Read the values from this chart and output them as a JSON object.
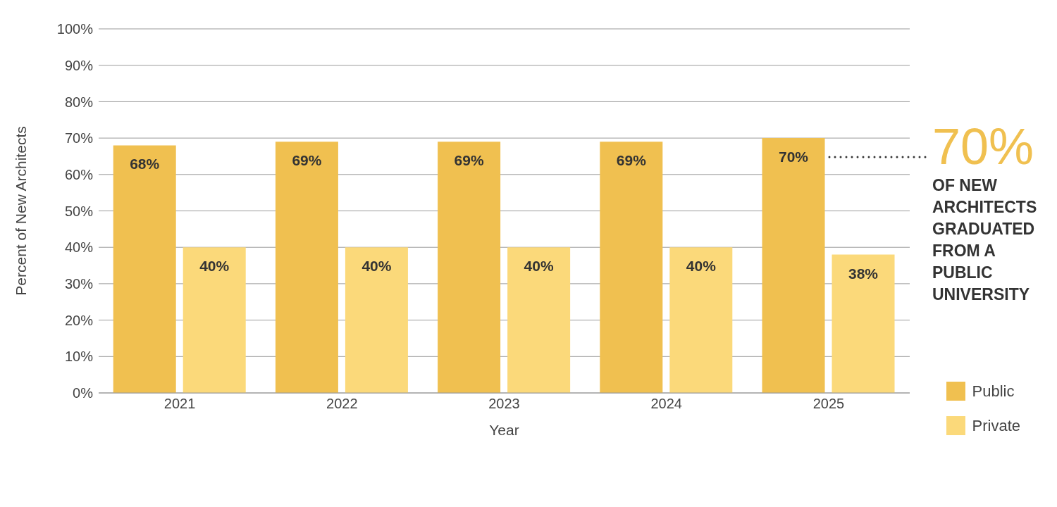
{
  "chart_data": {
    "type": "bar",
    "xlabel": "Year",
    "ylabel": "Percent of New Architects",
    "categories": [
      "2021",
      "2022",
      "2023",
      "2024",
      "2025"
    ],
    "series": [
      {
        "name": "Public",
        "color": "#f0c050",
        "values": [
          68,
          69,
          69,
          69,
          70
        ],
        "value_labels": [
          "68%",
          "69%",
          "69%",
          "69%",
          "70%"
        ]
      },
      {
        "name": "Private",
        "color": "#fbd97a",
        "values": [
          40,
          40,
          40,
          40,
          38
        ],
        "value_labels": [
          "40%",
          "40%",
          "40%",
          "40%",
          "38%"
        ]
      }
    ],
    "ylim": [
      0,
      100
    ],
    "yticks": [
      {
        "value": 0,
        "label": "0%"
      },
      {
        "value": 10,
        "label": "10%"
      },
      {
        "value": 20,
        "label": "20%"
      },
      {
        "value": 30,
        "label": "30%"
      },
      {
        "value": 40,
        "label": "40%"
      },
      {
        "value": 50,
        "label": "50%"
      },
      {
        "value": 60,
        "label": "60%"
      },
      {
        "value": 70,
        "label": "70%"
      },
      {
        "value": 80,
        "label": "80%"
      },
      {
        "value": 90,
        "label": "90%"
      },
      {
        "value": 100,
        "label": "100%"
      }
    ],
    "grid": "y",
    "legend": "bottom right",
    "annotations": [
      "70%",
      "OF NEW ARCHITECTS GRADUATED FROM A PUBLIC UNIVERSITY"
    ]
  }
}
